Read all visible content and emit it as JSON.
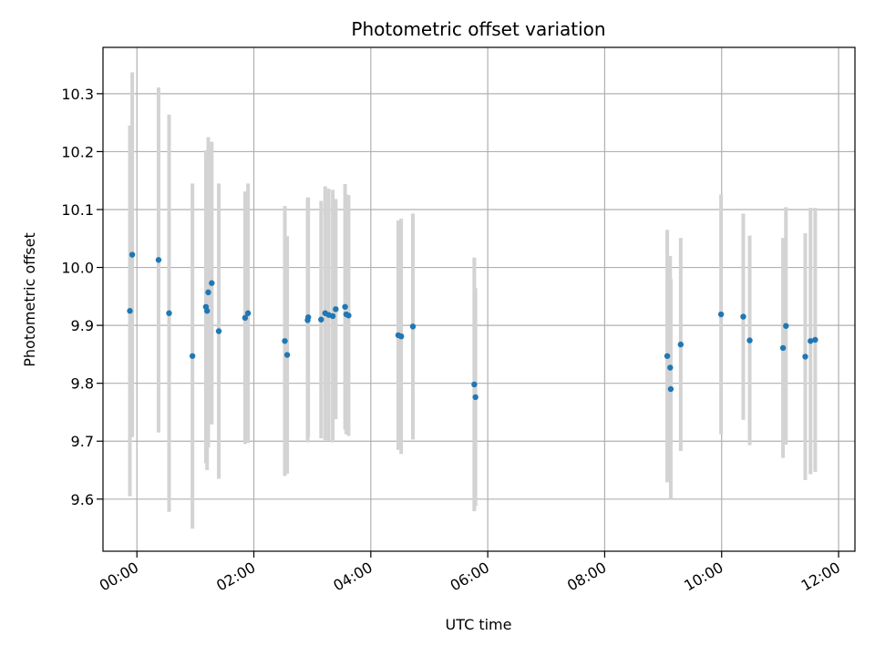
{
  "chart_data": {
    "type": "scatter",
    "title": "Photometric offset variation",
    "xlabel": "UTC time",
    "ylabel": "Photometric offset",
    "x_unit": "hours UTC",
    "xlim": [
      -0.58,
      12.28
    ],
    "ylim": [
      9.51,
      10.38
    ],
    "grid": true,
    "x_ticks": [
      {
        "value": 0,
        "label": "00:00"
      },
      {
        "value": 2,
        "label": "02:00"
      },
      {
        "value": 4,
        "label": "04:00"
      },
      {
        "value": 6,
        "label": "06:00"
      },
      {
        "value": 8,
        "label": "08:00"
      },
      {
        "value": 10,
        "label": "10:00"
      },
      {
        "value": 12,
        "label": "12:00"
      }
    ],
    "y_ticks": [
      {
        "value": 9.6,
        "label": "9.6"
      },
      {
        "value": 9.7,
        "label": "9.7"
      },
      {
        "value": 9.8,
        "label": "9.8"
      },
      {
        "value": 9.9,
        "label": "9.9"
      },
      {
        "value": 10.0,
        "label": "10.0"
      },
      {
        "value": 10.1,
        "label": "10.1"
      },
      {
        "value": 10.2,
        "label": "10.2"
      },
      {
        "value": 10.3,
        "label": "10.3"
      }
    ],
    "point_color": "#1f77b4",
    "errorbar_color": "#d3d3d3",
    "points": [
      {
        "x": -0.12,
        "y": 9.925,
        "err": 0.32
      },
      {
        "x": -0.08,
        "y": 10.022,
        "err": 0.315
      },
      {
        "x": 0.37,
        "y": 10.013,
        "err": 0.298
      },
      {
        "x": 0.55,
        "y": 9.921,
        "err": 0.343
      },
      {
        "x": 0.95,
        "y": 9.847,
        "err": 0.298
      },
      {
        "x": 1.18,
        "y": 9.932,
        "err": 0.27
      },
      {
        "x": 1.2,
        "y": 9.925,
        "err": 0.275
      },
      {
        "x": 1.22,
        "y": 9.957,
        "err": 0.268
      },
      {
        "x": 1.28,
        "y": 9.973,
        "err": 0.244
      },
      {
        "x": 1.4,
        "y": 9.89,
        "err": 0.255
      },
      {
        "x": 1.85,
        "y": 9.913,
        "err": 0.218
      },
      {
        "x": 1.9,
        "y": 9.921,
        "err": 0.224
      },
      {
        "x": 2.53,
        "y": 9.873,
        "err": 0.233
      },
      {
        "x": 2.57,
        "y": 9.849,
        "err": 0.205
      },
      {
        "x": 2.92,
        "y": 9.909,
        "err": 0.211
      },
      {
        "x": 2.93,
        "y": 9.914,
        "err": 0.207
      },
      {
        "x": 3.15,
        "y": 9.91,
        "err": 0.205
      },
      {
        "x": 3.22,
        "y": 9.921,
        "err": 0.219
      },
      {
        "x": 3.28,
        "y": 9.918,
        "err": 0.218
      },
      {
        "x": 3.35,
        "y": 9.916,
        "err": 0.218
      },
      {
        "x": 3.4,
        "y": 9.928,
        "err": 0.19
      },
      {
        "x": 3.56,
        "y": 9.932,
        "err": 0.212
      },
      {
        "x": 3.58,
        "y": 9.919,
        "err": 0.207
      },
      {
        "x": 3.62,
        "y": 9.917,
        "err": 0.208
      },
      {
        "x": 4.47,
        "y": 9.883,
        "err": 0.198
      },
      {
        "x": 4.52,
        "y": 9.881,
        "err": 0.203
      },
      {
        "x": 4.72,
        "y": 9.898,
        "err": 0.195
      },
      {
        "x": 5.77,
        "y": 9.798,
        "err": 0.219
      },
      {
        "x": 5.79,
        "y": 9.776,
        "err": 0.188
      },
      {
        "x": 9.07,
        "y": 9.847,
        "err": 0.218
      },
      {
        "x": 9.12,
        "y": 9.827,
        "err": 0.193
      },
      {
        "x": 9.13,
        "y": 9.79,
        "err": 0.19
      },
      {
        "x": 9.3,
        "y": 9.867,
        "err": 0.184
      },
      {
        "x": 9.99,
        "y": 9.919,
        "err": 0.207
      },
      {
        "x": 10.37,
        "y": 9.915,
        "err": 0.178
      },
      {
        "x": 10.48,
        "y": 9.874,
        "err": 0.181
      },
      {
        "x": 11.05,
        "y": 9.861,
        "err": 0.19
      },
      {
        "x": 11.1,
        "y": 9.899,
        "err": 0.205
      },
      {
        "x": 11.43,
        "y": 9.846,
        "err": 0.213
      },
      {
        "x": 11.52,
        "y": 9.873,
        "err": 0.23
      },
      {
        "x": 11.6,
        "y": 9.875,
        "err": 0.228
      }
    ]
  }
}
